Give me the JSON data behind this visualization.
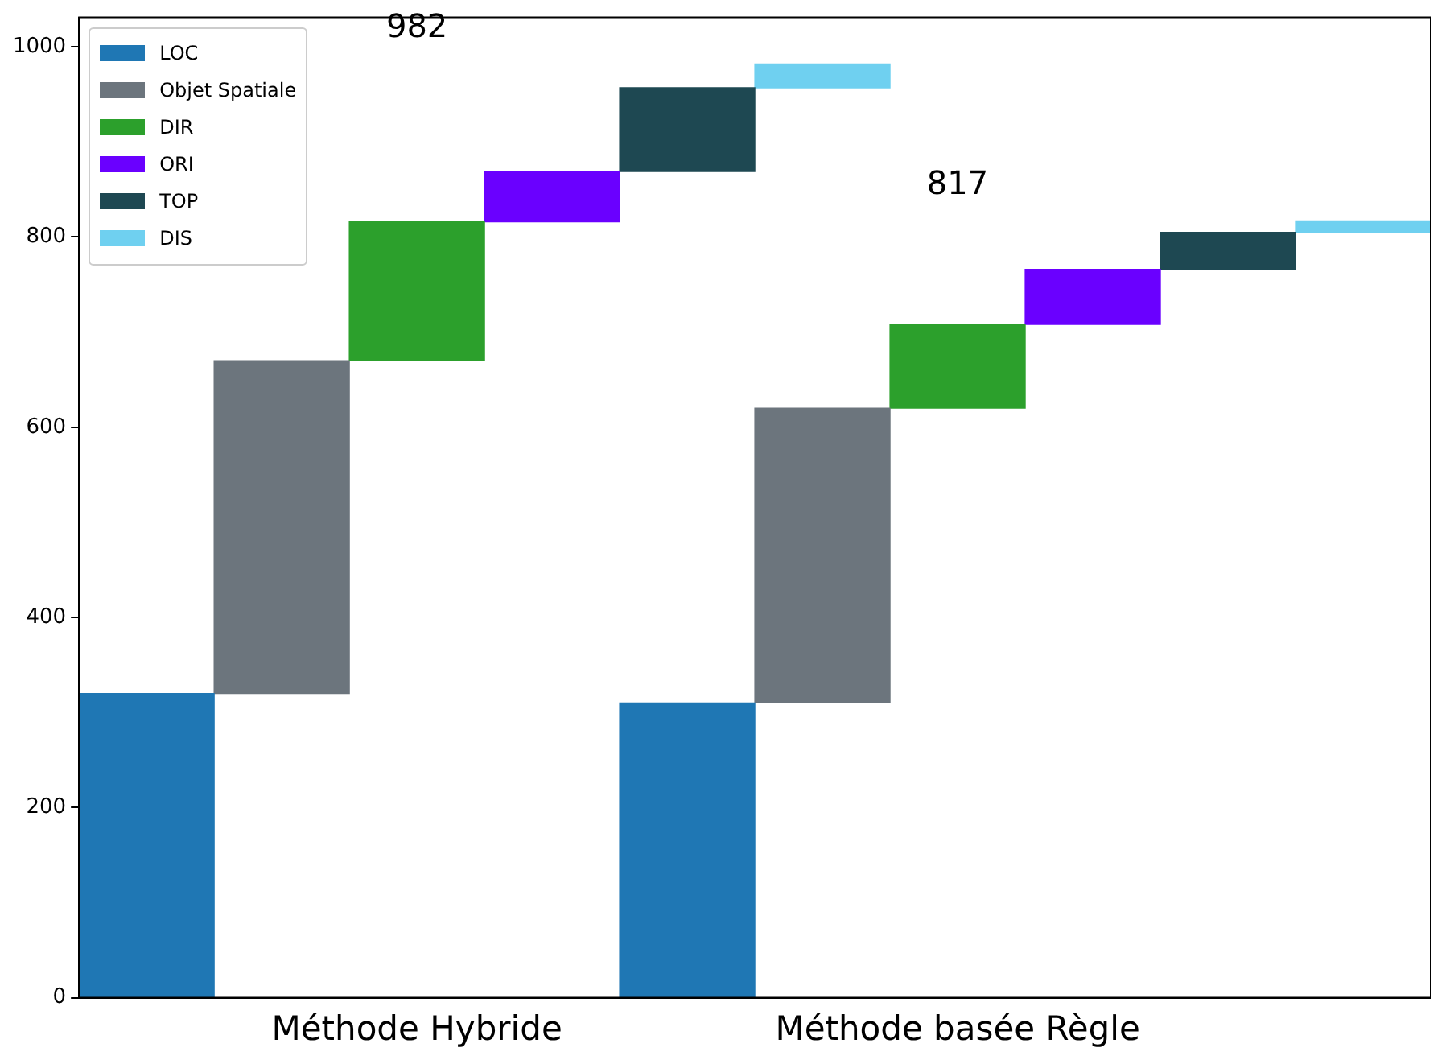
{
  "chart_data": {
    "type": "bar",
    "categories": [
      null,
      null,
      "Méthode Hybride",
      null,
      null,
      null,
      "Méthode basée Règle",
      null,
      null,
      null
    ],
    "series": [
      {
        "name": "LOC",
        "color": "#1f77b4",
        "values": [
          320,
          null,
          null,
          null,
          310,
          null,
          null,
          null,
          null,
          null
        ],
        "base": [
          0,
          null,
          null,
          null,
          0,
          null,
          null,
          null,
          null,
          null
        ]
      },
      {
        "name": "Objet Spatiale",
        "color": "#6c757d",
        "values": [
          null,
          350,
          null,
          null,
          null,
          310,
          null,
          null,
          null,
          null
        ],
        "base": [
          null,
          320,
          null,
          null,
          null,
          310,
          null,
          null,
          null,
          null
        ]
      },
      {
        "name": "DIR",
        "color": "#2ca02c",
        "values": [
          null,
          null,
          146,
          null,
          null,
          null,
          88,
          null,
          null,
          null
        ],
        "base": [
          null,
          null,
          670,
          null,
          null,
          null,
          620,
          null,
          null,
          null
        ]
      },
      {
        "name": "ORI",
        "color": "#6a00ff",
        "values": [
          null,
          null,
          null,
          53,
          null,
          null,
          null,
          58,
          null,
          null
        ],
        "base": [
          null,
          null,
          null,
          816,
          null,
          null,
          null,
          708,
          null,
          null
        ]
      },
      {
        "name": "TOP",
        "color": "#1e4852",
        "values": [
          null,
          null,
          null,
          null,
          88,
          null,
          null,
          null,
          39,
          null
        ],
        "base": [
          null,
          null,
          null,
          null,
          869,
          null,
          null,
          null,
          766,
          null
        ]
      },
      {
        "name": "DIS",
        "color": "#6fd0f0",
        "values": [
          null,
          null,
          null,
          null,
          null,
          25,
          null,
          null,
          null,
          12
        ],
        "base": [
          null,
          null,
          null,
          null,
          null,
          957,
          null,
          null,
          null,
          805
        ]
      }
    ],
    "ylim": [
      0,
      1031
    ],
    "yticks": [
      0,
      200,
      400,
      600,
      800,
      1000
    ],
    "legend": "top left",
    "annotations": [
      "982",
      "817"
    ]
  }
}
